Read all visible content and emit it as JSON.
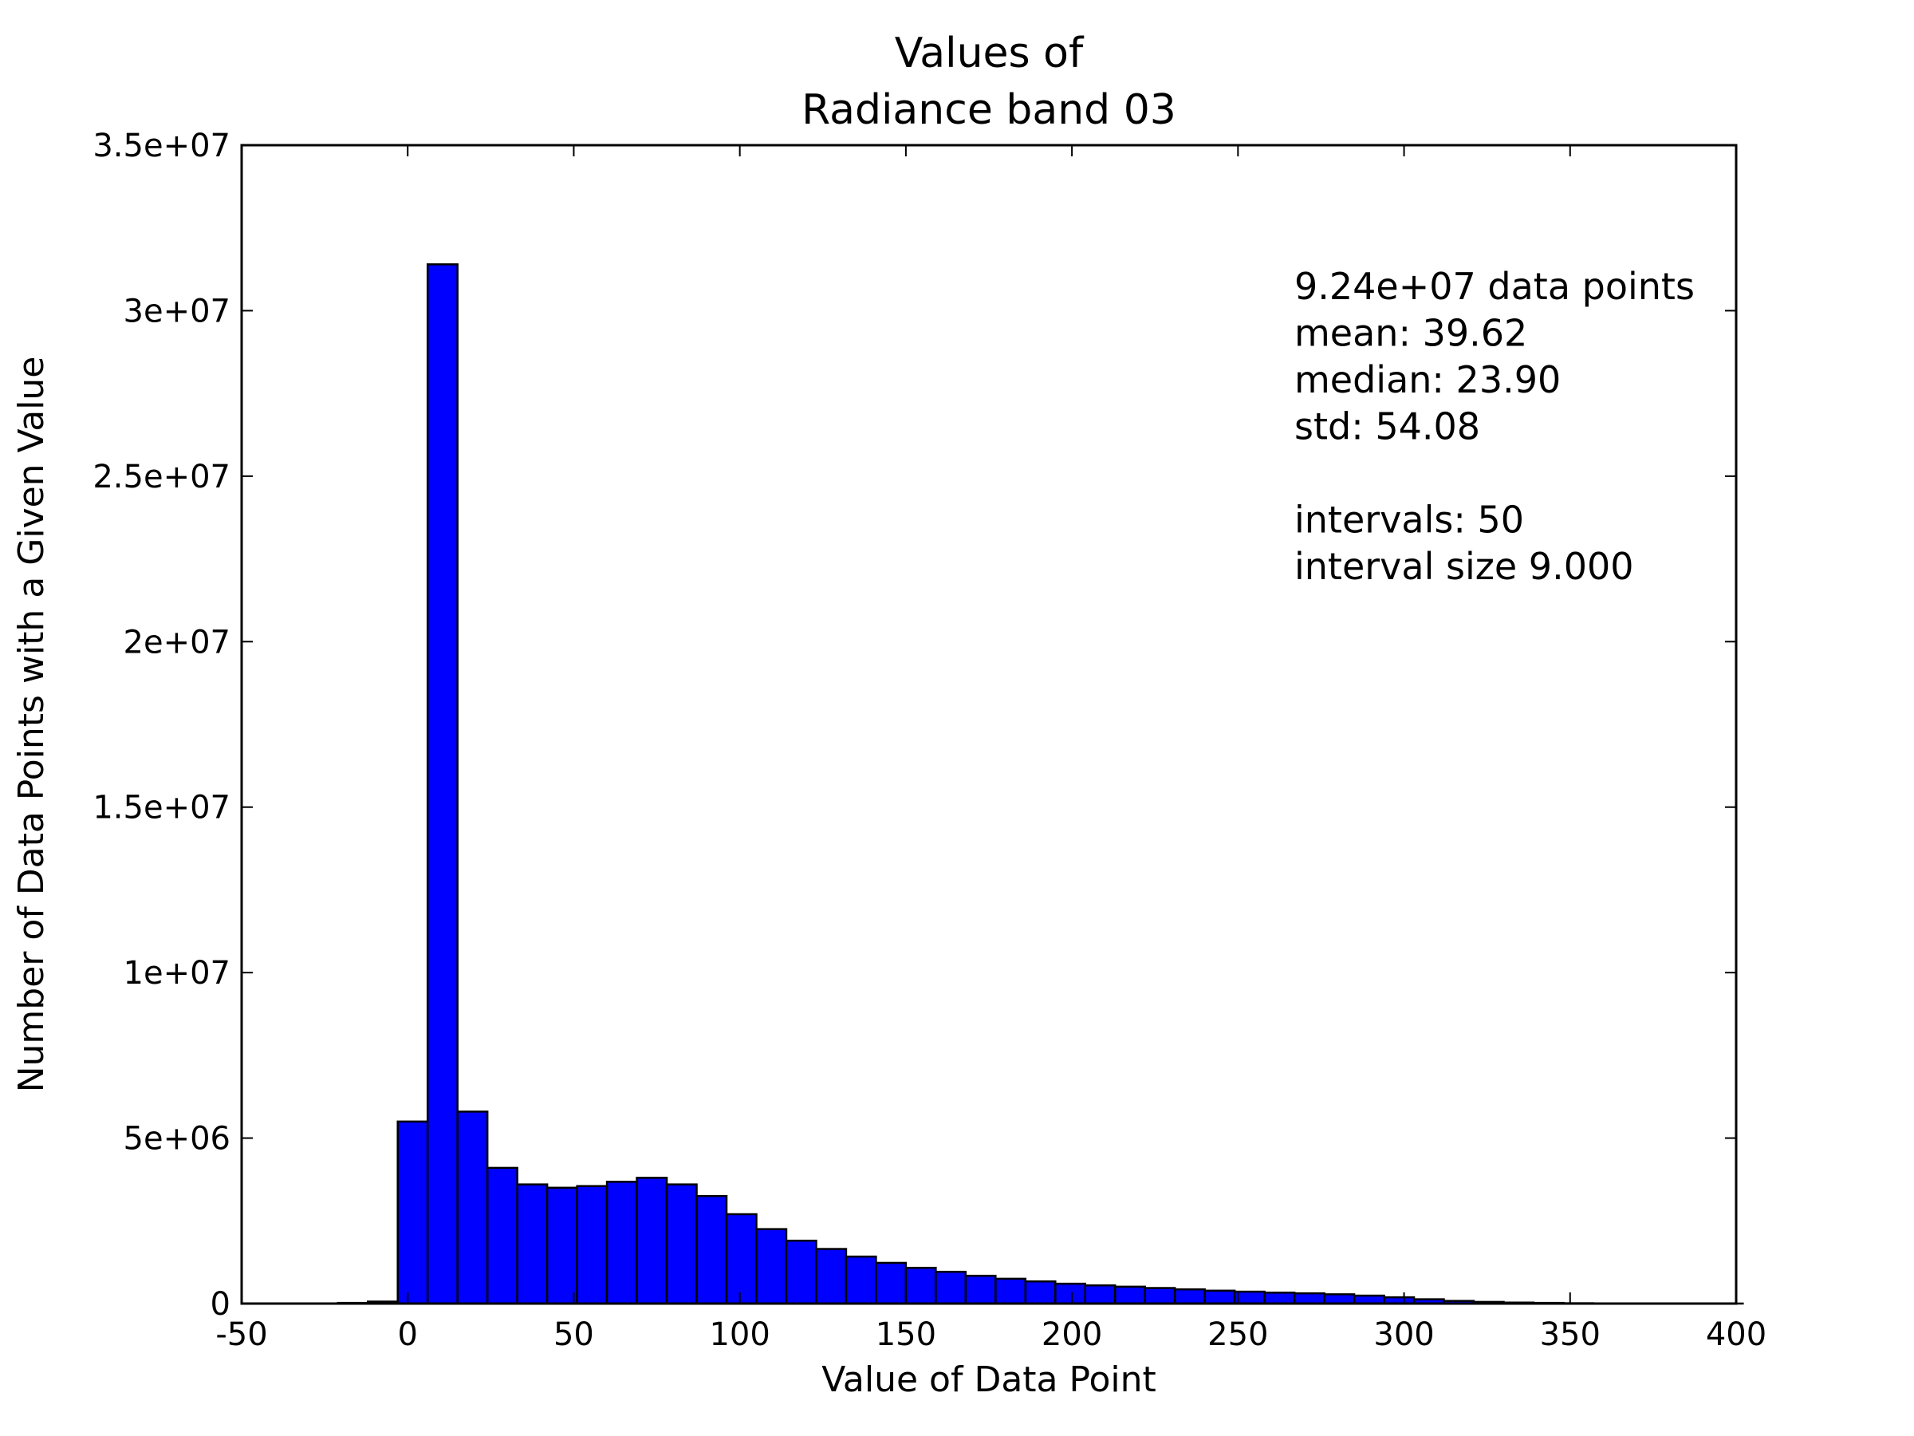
{
  "chart_data": {
    "type": "bar",
    "title_lines": [
      "Values of",
      "Radiance band 03"
    ],
    "xlabel": "Value of Data Point",
    "ylabel": "Number of Data Points with a Given Value",
    "xlim": [
      -50,
      400
    ],
    "ylim": [
      0,
      35000000
    ],
    "xticks": [
      -50,
      0,
      50,
      100,
      150,
      200,
      250,
      300,
      350,
      400
    ],
    "xtick_labels": [
      "-50",
      "0",
      "50",
      "100",
      "150",
      "200",
      "250",
      "300",
      "350",
      "400"
    ],
    "yticks": [
      0,
      5000000,
      10000000,
      15000000,
      20000000,
      25000000,
      30000000,
      35000000
    ],
    "ytick_labels": [
      "0",
      "5e+06",
      "1e+07",
      "1.5e+07",
      "2e+07",
      "2.5e+07",
      "3e+07",
      "3.5e+07"
    ],
    "bin_start": -48,
    "bin_width": 9,
    "values": [
      0,
      0,
      0,
      20000,
      60000,
      5500000,
      31400000,
      5800000,
      4100000,
      3600000,
      3500000,
      3550000,
      3680000,
      3800000,
      3600000,
      3250000,
      2700000,
      2250000,
      1900000,
      1650000,
      1420000,
      1230000,
      1080000,
      960000,
      840000,
      750000,
      670000,
      600000,
      550000,
      510000,
      470000,
      430000,
      390000,
      360000,
      330000,
      310000,
      280000,
      240000,
      190000,
      130000,
      80000,
      50000,
      30000,
      20000,
      10000,
      5000,
      3000,
      2000,
      1000,
      1000
    ],
    "bar_color": "#0000ff",
    "grid": false,
    "stats_lines": [
      "9.24e+07 data points",
      "mean: 39.62",
      "median: 23.90",
      "std: 54.08",
      "",
      "intervals: 50",
      "interval size 9.000"
    ]
  }
}
